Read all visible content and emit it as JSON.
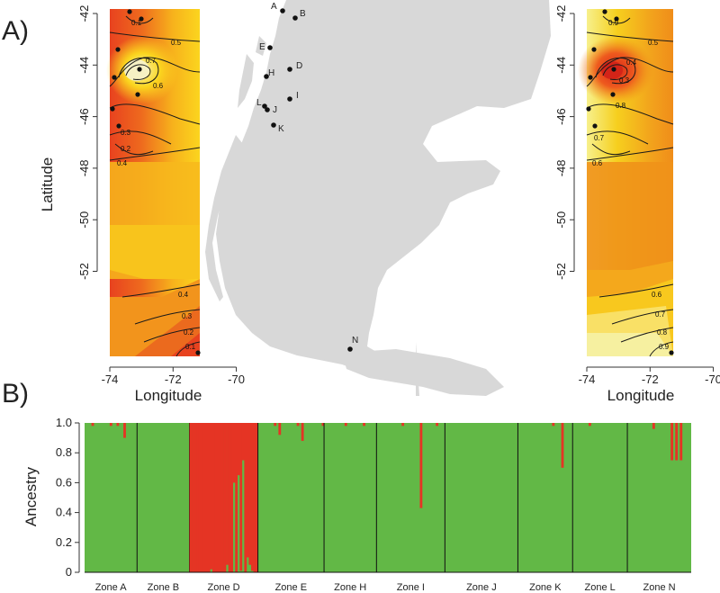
{
  "panel_labels": {
    "a": "A)",
    "b": "B)"
  },
  "colors": {
    "ancestry_green": "#62b846",
    "ancestry_red": "#e53424",
    "land": "#d8d8d8",
    "heat_red": "#e8421f",
    "heat_orange": "#f08d1a",
    "heat_yellow": "#fbd51e",
    "heat_paleyellow": "#f5f08c"
  },
  "map": {
    "site_labels": [
      "A",
      "B",
      "D",
      "E",
      "H",
      "I",
      "J",
      "K",
      "L",
      "N"
    ]
  },
  "chart_data": [
    {
      "type": "heatmap",
      "title": "",
      "xlabel": "Longitude",
      "ylabel": "Latitude",
      "xlim": [
        -74,
        -71
      ],
      "ylim": [
        -53.8,
        -42
      ],
      "xticks": [
        "-74",
        "-72",
        "-70"
      ],
      "yticks": [
        "-42",
        "-44",
        "-46",
        "-48",
        "-50",
        "-52"
      ],
      "contour_labels": [
        "0.1",
        "0.5",
        "0.7",
        "0.6",
        "0.4",
        "0.3",
        "0.2",
        "0.4",
        "0.3",
        "0.2",
        "0.1"
      ]
    },
    {
      "type": "heatmap",
      "title": "",
      "xlabel": "Longitude",
      "ylabel": "",
      "xlim": [
        -74,
        -71
      ],
      "ylim": [
        -53.8,
        -42
      ],
      "xticks": [
        "-74",
        "-72",
        "-70"
      ],
      "yticks": [
        "-42",
        "-44",
        "-46",
        "-48",
        "-50",
        "-52"
      ],
      "contour_labels": [
        "0.9",
        "0.5",
        "0.4",
        "0.3",
        "0.8",
        "0.7",
        "0.6",
        "0.6",
        "0.7",
        "0.8",
        "0.9"
      ]
    },
    {
      "type": "bar",
      "stacked": true,
      "ylabel": "Ancestry",
      "xlabel": "",
      "ylim": [
        0,
        1
      ],
      "yticks": [
        "0",
        "0.2",
        "0.4",
        "0.6",
        "0.8",
        "1.0"
      ],
      "zones": [
        {
          "name": "Zone A",
          "red": [
            0,
            0,
            0,
            0.02,
            0,
            0,
            0,
            0,
            0,
            0,
            0,
            0.02,
            0,
            0,
            0.02,
            0,
            0,
            0.1,
            0,
            0,
            0,
            0,
            0
          ]
        },
        {
          "name": "Zone B",
          "red": [
            0,
            0,
            0,
            0,
            0,
            0,
            0,
            0,
            0,
            0,
            0,
            0,
            0,
            0,
            0,
            0,
            0,
            0,
            0,
            0,
            0,
            0,
            0
          ]
        },
        {
          "name": "Zone D",
          "red": [
            1,
            1,
            1,
            1,
            1,
            1,
            1,
            1,
            1,
            0.98,
            1,
            1,
            1,
            1,
            1,
            1,
            0.95,
            1,
            1,
            0.4,
            1,
            0.35,
            0.99,
            0.25,
            1,
            0.9,
            0.95,
            0.99,
            1,
            1
          ]
        },
        {
          "name": "Zone E",
          "red": [
            0,
            0,
            0,
            0,
            0,
            0,
            0,
            0.02,
            0,
            0.08,
            0,
            0,
            0,
            0,
            0,
            0,
            0,
            0.02,
            0,
            0.12,
            0,
            0,
            0,
            0,
            0,
            0,
            0,
            0,
            0.02
          ]
        },
        {
          "name": "Zone H",
          "red": [
            0,
            0,
            0,
            0,
            0,
            0,
            0,
            0,
            0,
            0.02,
            0,
            0,
            0,
            0,
            0,
            0,
            0,
            0.02,
            0,
            0,
            0,
            0,
            0
          ]
        },
        {
          "name": "Zone I",
          "red": [
            0,
            0,
            0,
            0,
            0,
            0,
            0,
            0,
            0,
            0,
            0,
            0.02,
            0,
            0,
            0,
            0,
            0,
            0,
            0,
            0.57,
            0,
            0,
            0,
            0,
            0,
            0,
            0.02,
            0,
            0,
            0
          ]
        },
        {
          "name": "Zone J",
          "red": [
            0,
            0,
            0,
            0,
            0,
            0,
            0,
            0,
            0,
            0,
            0,
            0,
            0,
            0,
            0,
            0,
            0,
            0,
            0,
            0,
            0,
            0,
            0,
            0,
            0,
            0,
            0,
            0,
            0,
            0,
            0,
            0
          ]
        },
        {
          "name": "Zone K",
          "red": [
            0,
            0,
            0,
            0,
            0,
            0,
            0,
            0,
            0,
            0,
            0,
            0,
            0,
            0,
            0,
            0.02,
            0,
            0,
            0,
            0.3,
            0,
            0,
            0,
            0
          ]
        },
        {
          "name": "Zone L",
          "red": [
            0,
            0,
            0,
            0,
            0,
            0,
            0,
            0.02,
            0,
            0,
            0,
            0,
            0,
            0,
            0,
            0,
            0,
            0,
            0,
            0,
            0,
            0,
            0,
            0
          ]
        },
        {
          "name": "Zone N",
          "red": [
            0,
            0,
            0,
            0,
            0,
            0,
            0,
            0,
            0,
            0,
            0,
            0.04,
            0,
            0,
            0,
            0,
            0,
            0,
            0,
            0.25,
            0,
            0.25,
            0,
            0.25,
            0,
            0,
            0,
            0
          ]
        }
      ]
    }
  ]
}
